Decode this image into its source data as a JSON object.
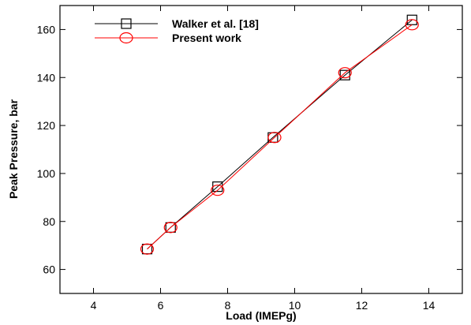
{
  "chart_data": {
    "type": "line",
    "title": "",
    "xlabel": "Load (IMEPg)",
    "ylabel": "Peak Pressure, bar",
    "xlim": [
      3,
      15
    ],
    "ylim": [
      50,
      170
    ],
    "x_ticks": [
      4,
      6,
      8,
      10,
      12,
      14
    ],
    "y_ticks": [
      60,
      80,
      100,
      120,
      140,
      160
    ],
    "x_tick_labels": [
      "4",
      "6",
      "8",
      "10",
      "12",
      "14"
    ],
    "y_tick_labels": [
      "60",
      "80",
      "100",
      "120",
      "140",
      "160"
    ],
    "grid": false,
    "legend_position": "top-left",
    "series": [
      {
        "name": "Walker et al. [18]",
        "marker": "square",
        "color": "#000000",
        "x": [
          5.6,
          6.3,
          7.7,
          9.35,
          11.5,
          13.5
        ],
        "y": [
          68.5,
          77.5,
          94.5,
          115,
          141,
          164
        ]
      },
      {
        "name": "Present work",
        "marker": "circle",
        "color": "#ff0000",
        "x": [
          5.6,
          6.3,
          7.7,
          9.4,
          11.5,
          13.5
        ],
        "y": [
          68.5,
          77.5,
          93,
          115,
          142,
          162
        ]
      }
    ]
  }
}
